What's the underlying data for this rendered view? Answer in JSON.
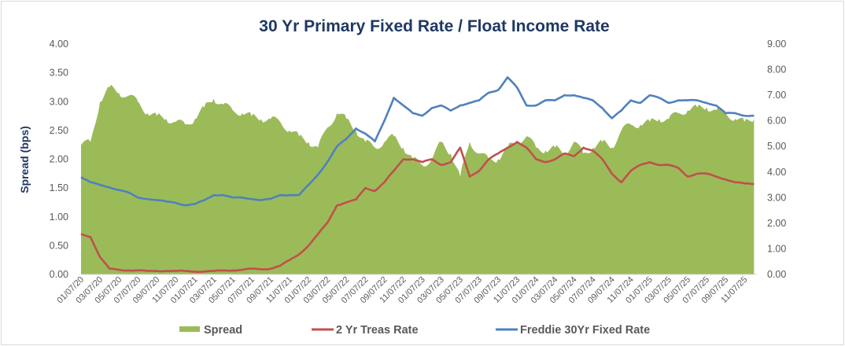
{
  "chart_data": {
    "type": "area+line",
    "title": "30 Yr Primary Fixed Rate / Float Income Rate",
    "ylabel": "Spread (bps)",
    "ylim": [
      0,
      4
    ],
    "y2lim": [
      0,
      9
    ],
    "yticks": [
      "0.00",
      "0.50",
      "1.00",
      "1.50",
      "2.00",
      "2.50",
      "3.00",
      "3.50",
      "4.00"
    ],
    "y2ticks": [
      "0.00",
      "1.00",
      "2.00",
      "3.00",
      "4.00",
      "5.00",
      "6.00",
      "7.00",
      "8.00",
      "9.00"
    ],
    "xtick_labels": [
      "01/07/20",
      "03/07/20",
      "05/07/20",
      "07/07/20",
      "09/07/20",
      "11/07/20",
      "01/07/21",
      "03/07/21",
      "05/07/21",
      "07/07/21",
      "09/07/21",
      "11/07/21",
      "01/07/22",
      "03/07/22",
      "05/07/22",
      "07/07/22",
      "09/07/22",
      "11/07/22",
      "01/07/23",
      "03/07/23",
      "05/07/23",
      "07/07/23",
      "09/07/23",
      "11/07/23",
      "01/07/24",
      "03/07/24",
      "05/07/24",
      "07/07/24",
      "09/07/24",
      "11/07/24",
      "01/07/25",
      "03/07/25",
      "05/07/25",
      "07/07/25",
      "09/07/25",
      "11/07/25"
    ],
    "x_frequency": "monthly, 01/2020 to 12/2025",
    "grid": false,
    "legend": "bottom",
    "series": [
      {
        "name": "Spread",
        "axis": "left",
        "kind": "area",
        "color": "#9bbb59",
        "values": [
          2.25,
          2.3,
          3.0,
          3.25,
          3.15,
          3.1,
          3.0,
          2.8,
          2.75,
          2.7,
          2.65,
          2.6,
          2.7,
          2.9,
          3.05,
          2.95,
          2.85,
          2.8,
          2.75,
          2.7,
          2.7,
          2.65,
          2.5,
          2.4,
          2.3,
          2.2,
          2.55,
          2.8,
          2.7,
          2.5,
          2.3,
          2.2,
          2.3,
          2.4,
          2.2,
          2.0,
          1.9,
          2.0,
          2.3,
          2.1,
          1.7,
          2.3,
          2.1,
          2.0,
          2.0,
          2.2,
          2.3,
          2.4,
          2.2,
          2.15,
          2.2,
          2.1,
          2.3,
          2.1,
          2.2,
          2.3,
          2.2,
          2.5,
          2.6,
          2.6,
          2.65,
          2.7,
          2.7,
          2.8,
          2.85,
          2.9,
          2.9,
          2.85,
          2.8,
          2.7,
          2.65,
          2.7
        ]
      },
      {
        "name": "2 Yr Treas Rate",
        "axis": "left",
        "kind": "line",
        "color": "#c0504d",
        "values": [
          0.7,
          0.65,
          0.3,
          0.1,
          0.08,
          0.07,
          0.07,
          0.06,
          0.06,
          0.06,
          0.06,
          0.06,
          0.05,
          0.05,
          0.06,
          0.07,
          0.07,
          0.08,
          0.1,
          0.09,
          0.1,
          0.15,
          0.25,
          0.35,
          0.5,
          0.7,
          0.9,
          1.2,
          1.25,
          1.3,
          1.5,
          1.45,
          1.6,
          1.8,
          2.0,
          2.0,
          1.95,
          2.0,
          1.9,
          1.95,
          2.2,
          1.7,
          1.8,
          2.0,
          2.1,
          2.2,
          2.3,
          2.2,
          2.0,
          1.95,
          2.0,
          2.1,
          2.05,
          2.2,
          2.15,
          2.0,
          1.75,
          1.6,
          1.8,
          1.9,
          1.95,
          1.9,
          1.9,
          1.85,
          1.7,
          1.75,
          1.75,
          1.7,
          1.65,
          1.6,
          1.58,
          1.57
        ]
      },
      {
        "name": "Freddie 30Yr Fixed Rate",
        "axis": "right",
        "kind": "line",
        "color": "#4f81bd",
        "values": [
          3.8,
          3.6,
          3.5,
          3.4,
          3.3,
          3.2,
          3.0,
          2.95,
          2.9,
          2.85,
          2.8,
          2.7,
          2.75,
          2.9,
          3.1,
          3.1,
          3.0,
          3.0,
          2.95,
          2.9,
          2.95,
          3.1,
          3.1,
          3.1,
          3.5,
          3.9,
          4.4,
          5.0,
          5.3,
          5.7,
          5.5,
          5.2,
          6.0,
          6.9,
          6.6,
          6.3,
          6.2,
          6.5,
          6.6,
          6.4,
          6.6,
          6.7,
          6.8,
          7.1,
          7.2,
          7.7,
          7.3,
          6.6,
          6.6,
          6.8,
          6.8,
          7.0,
          7.0,
          6.9,
          6.8,
          6.5,
          6.1,
          6.4,
          6.8,
          6.7,
          7.0,
          6.9,
          6.7,
          6.8,
          6.8,
          6.8,
          6.7,
          6.6,
          6.3,
          6.3,
          6.2,
          6.2
        ]
      }
    ]
  }
}
